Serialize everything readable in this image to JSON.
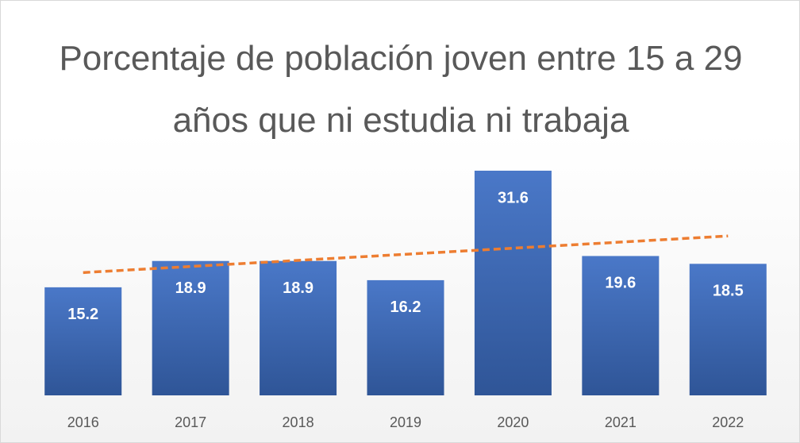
{
  "chart_data": {
    "type": "bar",
    "title": "Porcentaje de población joven entre 15 a 29 años que ni estudia ni trabaja",
    "categories": [
      "2016",
      "2017",
      "2018",
      "2019",
      "2020",
      "2021",
      "2022"
    ],
    "values": [
      15.2,
      18.9,
      18.9,
      16.2,
      31.6,
      19.6,
      18.5
    ],
    "color": "#4472c4",
    "trendline": {
      "type": "linear",
      "color": "#ed7d31",
      "dashed": true
    }
  }
}
